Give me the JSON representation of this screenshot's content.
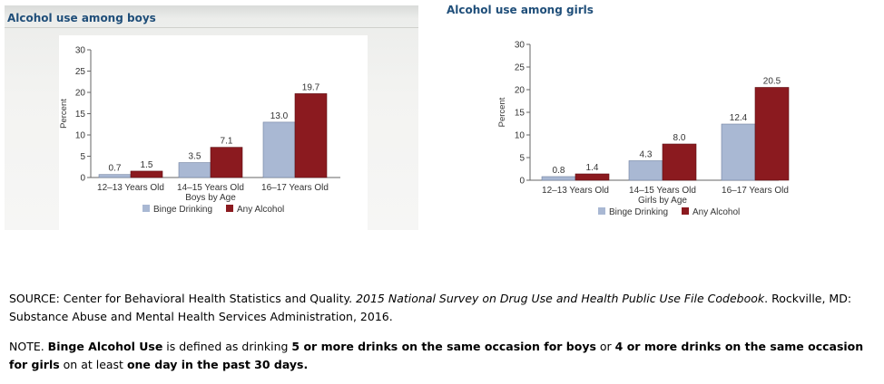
{
  "chart_data": [
    {
      "type": "bar",
      "title": "Alcohol use among boys",
      "xlabel": "Boys by Age",
      "ylabel": "Percent",
      "categories": [
        "12–13 Years Old",
        "14–15 Years Old",
        "16–17 Years Old"
      ],
      "series": [
        {
          "name": "Binge Drinking",
          "values": [
            0.7,
            3.5,
            13.0
          ],
          "labels": [
            "0.7",
            "3.5",
            "13.0"
          ],
          "color": "#a9b8d3"
        },
        {
          "name": "Any Alcohol",
          "values": [
            1.5,
            7.1,
            19.7
          ],
          "labels": [
            "1.5",
            "7.1",
            "19.7"
          ],
          "color": "#8b1a1f"
        }
      ],
      "ylim": [
        0,
        30
      ],
      "yticks": [
        0,
        5,
        10,
        15,
        20,
        25,
        30
      ],
      "ytick_labels": [
        "0",
        "5",
        "10",
        "15",
        "20",
        "25",
        "30"
      ],
      "grid": false,
      "legend": "bottom-center"
    },
    {
      "type": "bar",
      "title": "Alcohol use among girls",
      "xlabel": "Girls by Age",
      "ylabel": "Percent",
      "categories": [
        "12–13 Years Old",
        "14–15 Years Old",
        "16–17 Years Old"
      ],
      "series": [
        {
          "name": "Binge Drinking",
          "values": [
            0.8,
            4.3,
            12.4
          ],
          "labels": [
            "0.8",
            "4.3",
            "12.4"
          ],
          "color": "#a9b8d3"
        },
        {
          "name": "Any Alcohol",
          "values": [
            1.4,
            8.0,
            20.5
          ],
          "labels": [
            "1.4",
            "8.0",
            "20.5"
          ],
          "color": "#8b1a1f"
        }
      ],
      "ylim": [
        0,
        30
      ],
      "yticks": [
        0,
        5,
        10,
        15,
        20,
        25,
        30
      ],
      "ytick_labels": [
        "0",
        "5",
        "10",
        "15",
        "20",
        "25",
        "30"
      ],
      "grid": false,
      "legend": "bottom-center"
    }
  ],
  "source": {
    "prefix": "SOURCE: Center for Behavioral Health Statistics and Quality. ",
    "title": "2015 National Survey on Drug Use and Health Public Use File Codebook",
    "suffix": ". Rockville, MD: Substance Abuse and Mental Health Services Administration, 2016."
  },
  "note": {
    "t1": "NOTE. ",
    "b1": "Binge Alcohol Use",
    "t2": " is defined as drinking ",
    "b2": "5 or more drinks on the same occasion for boys",
    "t3": " or ",
    "b3": "4 or more drinks on the same occasion for girls",
    "t4": " on at least ",
    "b4": "one day in the past 30 days."
  }
}
